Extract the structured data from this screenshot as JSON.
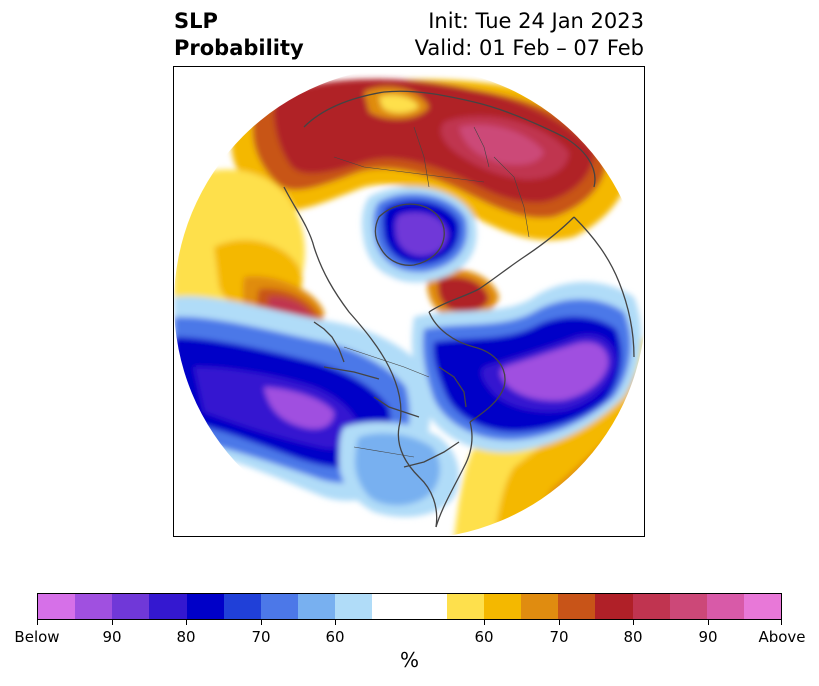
{
  "title": {
    "left_line1": "SLP",
    "left_line2": "Probability",
    "right_line1": "Init: Tue 24 Jan 2023",
    "right_line2": "Valid: 01 Feb – 07 Feb"
  },
  "colorbar": {
    "colors": [
      "#d670e8",
      "#a050e0",
      "#7038d8",
      "#3418d0",
      "#0000c8",
      "#2040d8",
      "#4c78e8",
      "#78b0f0",
      "#b0dcf8",
      "#ffffff",
      "#ffffff",
      "#fee04c",
      "#f4b800",
      "#e08c10",
      "#c85418",
      "#b02028",
      "#c03450",
      "#cc4878",
      "#d85aa8",
      "#e878d8"
    ],
    "tick_labels": [
      "Below",
      "90",
      "80",
      "70",
      "60",
      "60",
      "70",
      "80",
      "90",
      "Above"
    ],
    "unit": "%"
  }
}
